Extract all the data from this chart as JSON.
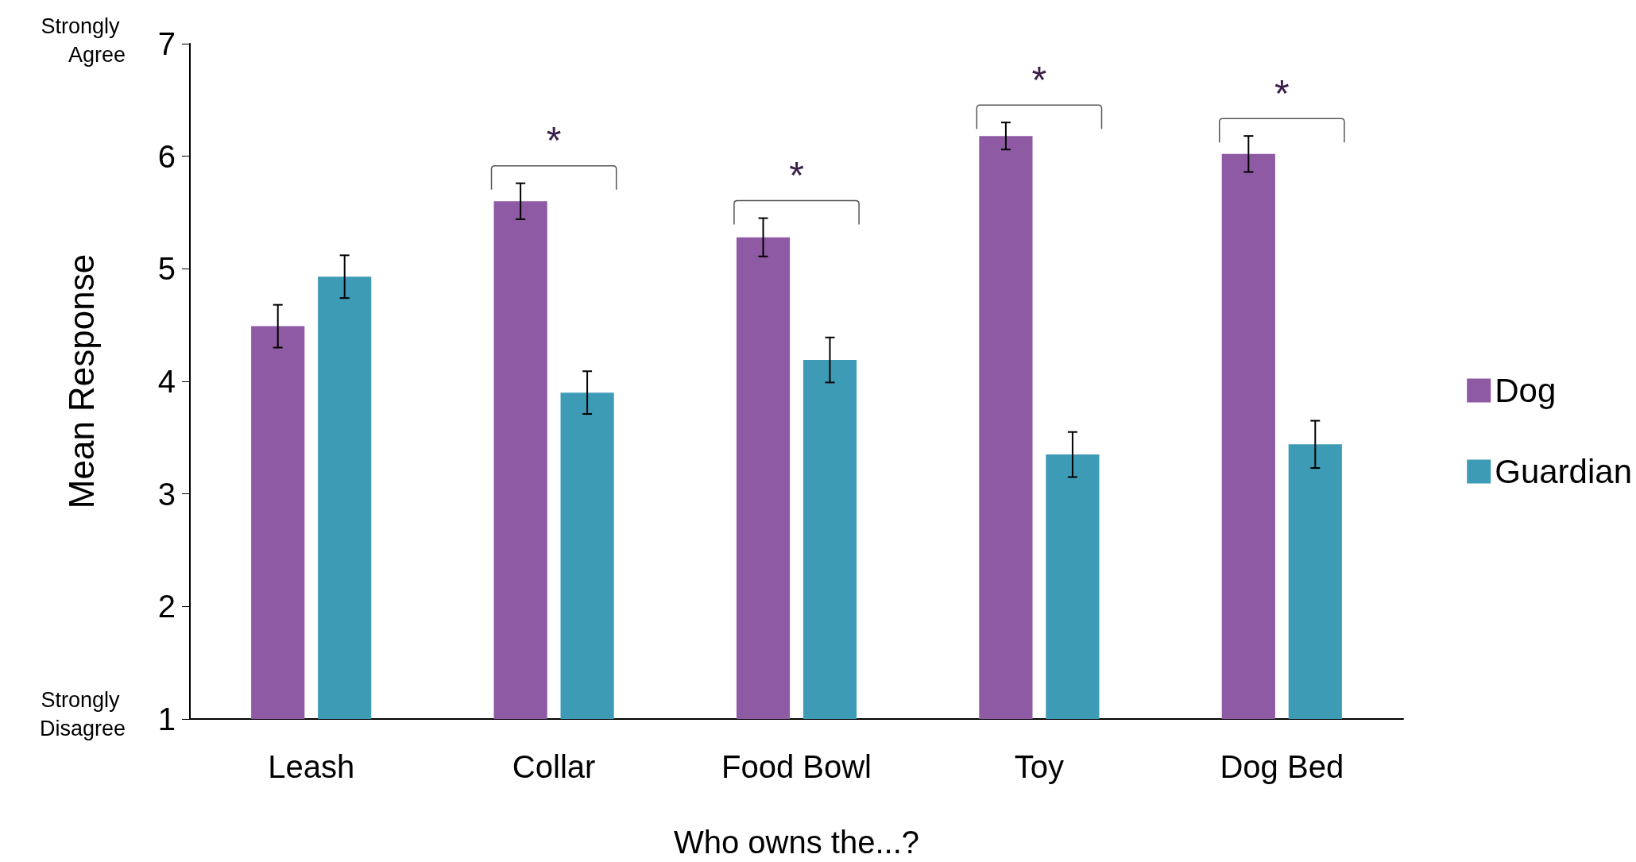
{
  "chart_data": {
    "type": "bar",
    "xlabel": "Who owns the...?",
    "ylabel": "Mean Response",
    "categories": [
      "Leash",
      "Collar",
      "Food Bowl",
      "Toy",
      "Dog Bed"
    ],
    "series": [
      {
        "name": "Dog",
        "color": "#8e5aa4",
        "values": [
          4.49,
          5.6,
          5.28,
          6.18,
          6.02
        ],
        "errors": [
          0.19,
          0.16,
          0.17,
          0.12,
          0.16
        ]
      },
      {
        "name": "Guardian",
        "color": "#3e9bb5",
        "values": [
          4.93,
          3.9,
          4.19,
          3.35,
          3.44
        ],
        "errors": [
          0.19,
          0.19,
          0.2,
          0.2,
          0.21
        ]
      }
    ],
    "ylim": [
      1,
      7
    ],
    "yticks": [
      1,
      2,
      3,
      4,
      5,
      6,
      7
    ],
    "grid": false,
    "legend": "right",
    "annotations": [
      "*",
      "*",
      "*",
      "*",
      "Strongly Agree",
      "Strongly Disagree"
    ]
  }
}
